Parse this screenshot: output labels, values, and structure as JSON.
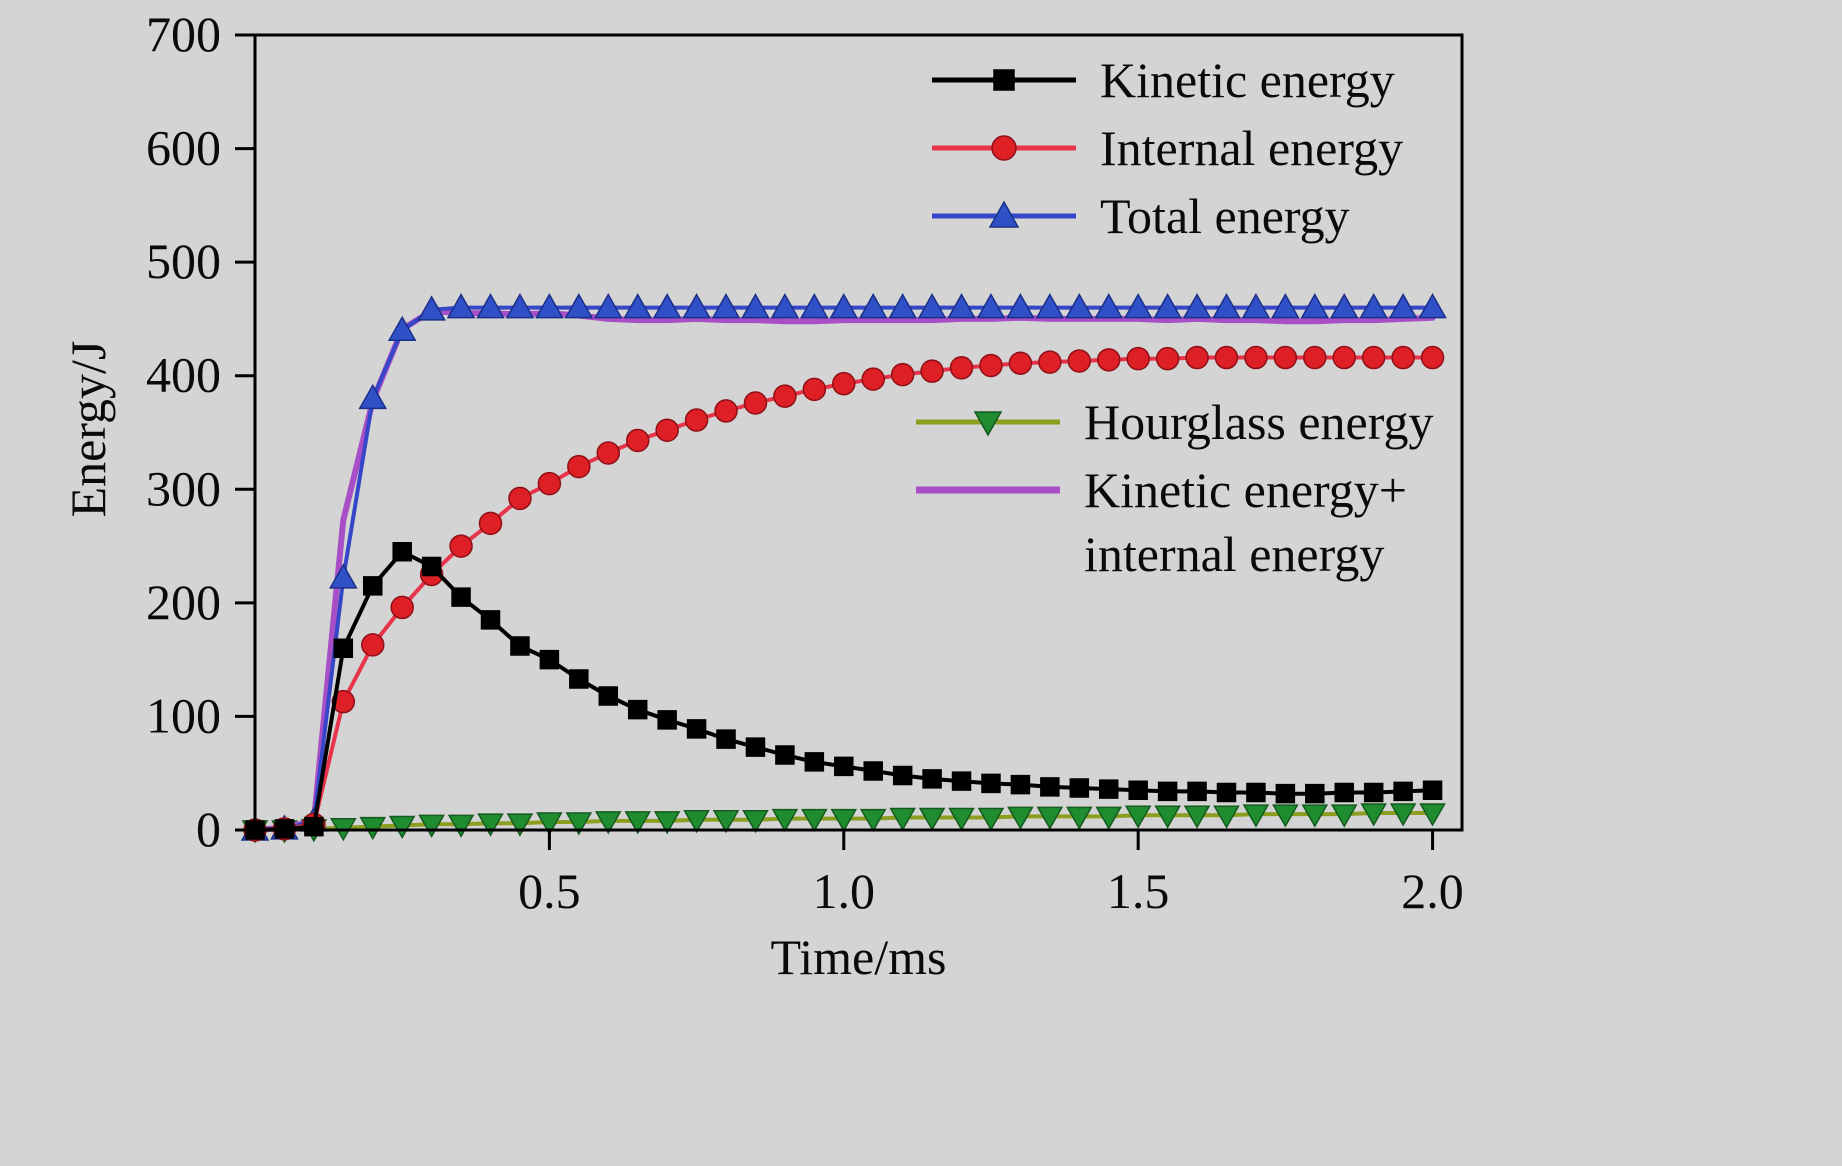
{
  "figure": {
    "background": "#d4d4d4",
    "axis_color": "#000000"
  },
  "chart_data": {
    "type": "line",
    "title": "",
    "xlabel": "Time/ms",
    "ylabel": "Energy/J",
    "xlim": [
      0,
      2.05
    ],
    "ylim": [
      0,
      700
    ],
    "grid": false,
    "legend_position": "two blocks: upper-right and middle-right",
    "xticks": [
      {
        "label": "0.5",
        "value": 0.5
      },
      {
        "label": "1.0",
        "value": 1.0
      },
      {
        "label": "1.5",
        "value": 1.5
      },
      {
        "label": "2.0",
        "value": 2.0
      }
    ],
    "yticks": [
      {
        "label": "0",
        "value": 0
      },
      {
        "label": "100",
        "value": 100
      },
      {
        "label": "200",
        "value": 200
      },
      {
        "label": "300",
        "value": 300
      },
      {
        "label": "400",
        "value": 400
      },
      {
        "label": "500",
        "value": 500
      },
      {
        "label": "600",
        "value": 600
      },
      {
        "label": "700",
        "value": 700
      }
    ],
    "series": [
      {
        "id": "hourglass",
        "name": "Hourglass energy",
        "line_color": "#8c9e1f",
        "line_width": 4,
        "marker": "triangle-down",
        "marker_color": "#1f8c2f",
        "marker_edge": "#145a1e",
        "x_start": 0,
        "x_step": 0.05,
        "values": [
          0,
          0,
          1,
          2,
          3,
          4,
          5,
          5,
          6,
          6,
          7,
          7,
          8,
          8,
          8,
          9,
          9,
          9,
          10,
          10,
          10,
          10,
          11,
          11,
          11,
          11,
          12,
          12,
          12,
          12,
          13,
          13,
          13,
          13,
          14,
          14,
          14,
          14,
          15,
          15,
          15
        ]
      },
      {
        "id": "ki",
        "name": "Kinetic energy+ internal energy",
        "line_color": "#a84fc8",
        "line_width": 6,
        "marker": "none",
        "marker_color": "#a84fc8",
        "marker_edge": "#a84fc8",
        "x_start": 0,
        "x_step": 0.05,
        "values": [
          0,
          2,
          8,
          273,
          378,
          441,
          457,
          455,
          455,
          454,
          455,
          453,
          450,
          449,
          449,
          450,
          449,
          449,
          448,
          448,
          449,
          449,
          449,
          449,
          450,
          450,
          451,
          450,
          450,
          450,
          450,
          449,
          450,
          449,
          449,
          448,
          448,
          449,
          449,
          450,
          451
        ]
      },
      {
        "id": "total",
        "name": "Total energy",
        "line_color": "#3546c8",
        "line_width": 4,
        "marker": "triangle-up",
        "marker_color": "#3050c8",
        "marker_edge": "#1a2f88",
        "x_start": 0,
        "x_step": 0.05,
        "values": [
          0,
          1,
          8,
          222,
          380,
          440,
          458,
          460,
          460,
          460,
          460,
          460,
          460,
          460,
          460,
          460,
          460,
          460,
          460,
          460,
          460,
          460,
          460,
          460,
          460,
          460,
          460,
          460,
          460,
          460,
          460,
          460,
          460,
          460,
          460,
          460,
          460,
          460,
          460,
          460,
          460
        ]
      },
      {
        "id": "internal",
        "name": "Internal energy",
        "line_color": "#e8344a",
        "line_width": 4,
        "marker": "circle",
        "marker_color": "#de1f26",
        "marker_edge": "#8f1016",
        "x_start": 0,
        "x_step": 0.05,
        "values": [
          0,
          1,
          5,
          113,
          163,
          196,
          225,
          250,
          270,
          292,
          305,
          320,
          332,
          343,
          352,
          361,
          369,
          376,
          382,
          388,
          393,
          397,
          401,
          404,
          407,
          409,
          411,
          412,
          413,
          414,
          415,
          415,
          416,
          416,
          416,
          416,
          416,
          416,
          416,
          416,
          416
        ]
      },
      {
        "id": "kinetic",
        "name": "Kinetic energy",
        "line_color": "#000000",
        "line_width": 4,
        "marker": "square",
        "marker_color": "#000000",
        "marker_edge": "#000000",
        "x_start": 0,
        "x_step": 0.05,
        "values": [
          0,
          1,
          3,
          160,
          215,
          245,
          232,
          205,
          185,
          162,
          150,
          133,
          118,
          106,
          97,
          89,
          80,
          73,
          66,
          60,
          56,
          52,
          48,
          45,
          43,
          41,
          40,
          38,
          37,
          36,
          35,
          34,
          34,
          33,
          33,
          32,
          32,
          33,
          33,
          34,
          35
        ]
      }
    ]
  },
  "legend_main": {
    "items": [
      {
        "label": "Kinetic energy",
        "series": "kinetic"
      },
      {
        "label": "Internal energy",
        "series": "internal"
      },
      {
        "label": "Total energy",
        "series": "total"
      }
    ]
  },
  "legend_secondary": {
    "items": [
      {
        "label": "Hourglass energy",
        "series": "hourglass"
      },
      {
        "label": "Kinetic energy+",
        "label2": "internal energy",
        "series": "ki"
      }
    ]
  }
}
